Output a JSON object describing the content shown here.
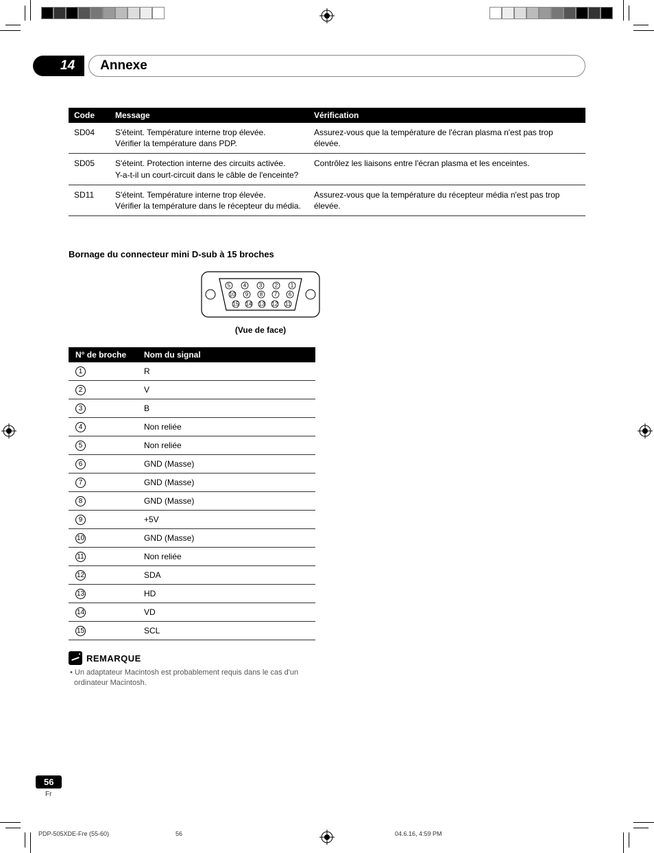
{
  "chapter": {
    "number": "14",
    "title": "Annexe"
  },
  "codes_table": {
    "columns": [
      "Code",
      "Message",
      "Vérification"
    ],
    "rows": [
      {
        "code": "SD04",
        "message": "S'éteint. Température interne trop élevée.\nVérifier la température dans PDP.",
        "verification": "Assurez-vous que la température de l'écran plasma n'est pas trop élevée."
      },
      {
        "code": "SD05",
        "message": "S'éteint. Protection interne des circuits activée.\nY-a-t-il un court-circuit dans le câble de l'enceinte?",
        "verification": "Contrôlez les liaisons entre l'écran plasma et les enceintes."
      },
      {
        "code": "SD11",
        "message": "S'éteint. Température interne trop élevée.\nVérifier la température dans le récepteur du média.",
        "verification": "Assurez-vous que la température du récepteur média n'est pas trop élevée."
      }
    ]
  },
  "connector": {
    "heading": "Bornage du connecteur mini D-sub à 15 broches",
    "caption": "(Vue de face)",
    "pin_rows": [
      [
        "5",
        "4",
        "3",
        "2",
        "1"
      ],
      [
        "10",
        "9",
        "8",
        "7",
        "6"
      ],
      [
        "15",
        "14",
        "13",
        "12",
        "11"
      ]
    ]
  },
  "pins_table": {
    "columns": [
      "N° de broche",
      "Nom du signal"
    ],
    "rows": [
      {
        "n": "1",
        "name": "R"
      },
      {
        "n": "2",
        "name": "V"
      },
      {
        "n": "3",
        "name": "B"
      },
      {
        "n": "4",
        "name": "Non reliée"
      },
      {
        "n": "5",
        "name": "Non reliée"
      },
      {
        "n": "6",
        "name": "GND (Masse)"
      },
      {
        "n": "7",
        "name": "GND (Masse)"
      },
      {
        "n": "8",
        "name": "GND (Masse)"
      },
      {
        "n": "9",
        "name": "+5V"
      },
      {
        "n": "10",
        "name": "GND (Masse)"
      },
      {
        "n": "11",
        "name": "Non reliée"
      },
      {
        "n": "12",
        "name": "SDA"
      },
      {
        "n": "13",
        "name": "HD"
      },
      {
        "n": "14",
        "name": "VD"
      },
      {
        "n": "15",
        "name": "SCL"
      }
    ]
  },
  "note": {
    "title": "REMARQUE",
    "bullet": "•",
    "text": "Un adaptateur Macintosh est probablement requis dans le cas d'un ordinateur Macintosh."
  },
  "footer": {
    "page_number": "56",
    "lang": "Fr",
    "doc_id": "PDP-505XDE-Fre (55-60)",
    "sheet": "56",
    "timestamp": "04.6.16, 4:59 PM"
  },
  "colors": {
    "colorbar_left": [
      "#000000",
      "#333333",
      "#000000",
      "#555555",
      "#777777",
      "#999999",
      "#bbbbbb",
      "#dddddd",
      "#eeeeee",
      "#ffffff"
    ],
    "colorbar_right": [
      "#ffffff",
      "#eeeeee",
      "#dddddd",
      "#bbbbbb",
      "#999999",
      "#777777",
      "#555555",
      "#000000",
      "#333333",
      "#000000"
    ]
  }
}
